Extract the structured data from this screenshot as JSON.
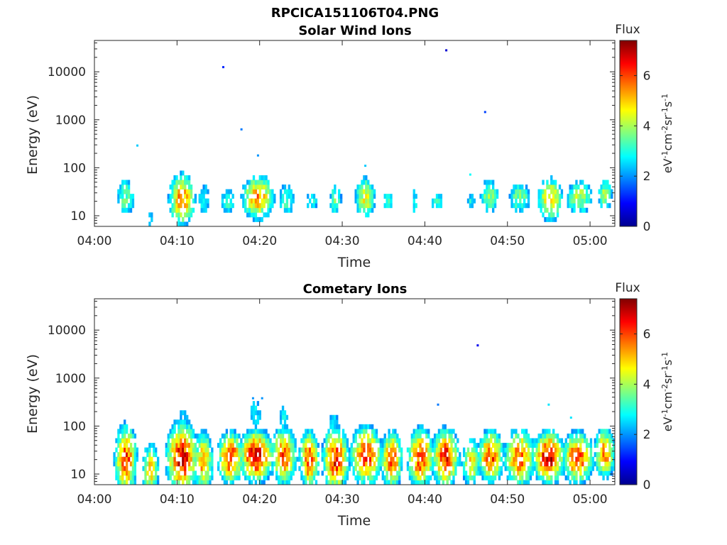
{
  "figure": {
    "filename_title": "RPCICA151106T04.PNG"
  },
  "chart_data": [
    {
      "type": "heatmap",
      "title": "Solar Wind Ions",
      "xlabel": "Time",
      "ylabel": "Energy (eV)",
      "yscale": "log",
      "ylim": [
        6,
        45000
      ],
      "xlim": [
        "04:00",
        "05:03"
      ],
      "x_ticks": [
        "04:00",
        "04:10",
        "04:20",
        "04:30",
        "04:40",
        "04:50",
        "05:00"
      ],
      "y_ticks": [
        "10",
        "100",
        "1000",
        "10000"
      ],
      "grid": false,
      "colorbar": {
        "label_top": "Flux",
        "unit": "eV-1cm-2sr-1s-1",
        "min": 0,
        "max": 7.4,
        "ticks": [
          "0",
          "2",
          "4",
          "6"
        ],
        "colormap": "jet"
      },
      "blobs": [
        {
          "t": 3.8,
          "e": 25,
          "w": 1.0,
          "ws": 0.35,
          "amp": 3.7
        },
        {
          "t": 6.8,
          "e": 8,
          "w": 0.5,
          "ws": 0.35,
          "amp": 2.5
        },
        {
          "t": 10.6,
          "e": 22,
          "w": 1.2,
          "ws": 0.4,
          "amp": 5.8
        },
        {
          "t": 13.3,
          "e": 22,
          "w": 0.8,
          "ws": 0.35,
          "amp": 3.0
        },
        {
          "t": 16.2,
          "e": 20,
          "w": 0.9,
          "ws": 0.25,
          "amp": 3.3
        },
        {
          "t": 19.8,
          "e": 24,
          "w": 1.5,
          "ws": 0.35,
          "amp": 5.6
        },
        {
          "t": 23.2,
          "e": 22,
          "w": 1.0,
          "ws": 0.35,
          "amp": 3.3
        },
        {
          "t": 26.3,
          "e": 20,
          "w": 0.7,
          "ws": 0.2,
          "amp": 3.3
        },
        {
          "t": 29.2,
          "e": 22,
          "w": 0.7,
          "ws": 0.3,
          "amp": 3.6
        },
        {
          "t": 32.8,
          "e": 24,
          "w": 1.0,
          "ws": 0.35,
          "amp": 4.7
        },
        {
          "t": 35.5,
          "e": 20,
          "w": 0.7,
          "ws": 0.2,
          "amp": 3.3
        },
        {
          "t": 38.8,
          "e": 20,
          "w": 0.5,
          "ws": 0.3,
          "amp": 3.0
        },
        {
          "t": 41.5,
          "e": 20,
          "w": 0.8,
          "ws": 0.2,
          "amp": 3.2
        },
        {
          "t": 45.6,
          "e": 20,
          "w": 0.5,
          "ws": 0.2,
          "amp": 3.0
        },
        {
          "t": 47.8,
          "e": 26,
          "w": 1.0,
          "ws": 0.3,
          "amp": 4.0
        },
        {
          "t": 51.5,
          "e": 24,
          "w": 1.2,
          "ws": 0.3,
          "amp": 3.8
        },
        {
          "t": 55.2,
          "e": 22,
          "w": 1.2,
          "ws": 0.35,
          "amp": 5.2
        },
        {
          "t": 58.7,
          "e": 24,
          "w": 1.4,
          "ws": 0.3,
          "amp": 4.2
        },
        {
          "t": 61.8,
          "e": 28,
          "w": 0.8,
          "ws": 0.3,
          "amp": 4.0
        }
      ],
      "dots": [
        {
          "t": 5.2,
          "e": 290,
          "v": 2.4
        },
        {
          "t": 15.6,
          "e": 12500,
          "v": 1.2
        },
        {
          "t": 17.8,
          "e": 630,
          "v": 1.8
        },
        {
          "t": 19.8,
          "e": 180,
          "v": 2.0
        },
        {
          "t": 32.8,
          "e": 110,
          "v": 2.4
        },
        {
          "t": 42.6,
          "e": 28000,
          "v": 0.6
        },
        {
          "t": 45.5,
          "e": 72,
          "v": 2.8
        },
        {
          "t": 47.3,
          "e": 1450,
          "v": 1.4
        }
      ]
    },
    {
      "type": "heatmap",
      "title": "Cometary Ions",
      "xlabel": "Time",
      "ylabel": "Energy (eV)",
      "yscale": "log",
      "ylim": [
        6,
        45000
      ],
      "xlim": [
        "04:00",
        "05:03"
      ],
      "x_ticks": [
        "04:00",
        "04:10",
        "04:20",
        "04:30",
        "04:40",
        "04:50",
        "05:00"
      ],
      "y_ticks": [
        "10",
        "100",
        "1000",
        "10000"
      ],
      "grid": false,
      "colorbar": {
        "label_top": "Flux",
        "unit": "eV-1cm-2sr-1s-1",
        "min": 0,
        "max": 7.4,
        "ticks": [
          "0",
          "2",
          "4",
          "6"
        ],
        "colormap": "jet"
      },
      "blobs": [
        {
          "t": 3.8,
          "e": 20,
          "w": 1.0,
          "ws": 0.55,
          "amp": 6.2
        },
        {
          "t": 3.2,
          "e": 250,
          "w": 0.4,
          "ws": 0.2,
          "amp": 2.0
        },
        {
          "t": 6.8,
          "e": 12,
          "w": 0.8,
          "ws": 0.45,
          "amp": 5.0
        },
        {
          "t": 10.6,
          "e": 22,
          "w": 1.4,
          "ws": 0.55,
          "amp": 6.8
        },
        {
          "t": 10.8,
          "e": 150,
          "w": 0.8,
          "ws": 0.3,
          "amp": 2.6
        },
        {
          "t": 13.2,
          "e": 18,
          "w": 0.9,
          "ws": 0.5,
          "amp": 5.5
        },
        {
          "t": 16.5,
          "e": 22,
          "w": 1.2,
          "ws": 0.4,
          "amp": 6.4
        },
        {
          "t": 19.6,
          "e": 24,
          "w": 1.5,
          "ws": 0.4,
          "amp": 7.0
        },
        {
          "t": 19.5,
          "e": 180,
          "w": 0.8,
          "ws": 0.4,
          "amp": 2.8
        },
        {
          "t": 22.9,
          "e": 24,
          "w": 1.2,
          "ws": 0.45,
          "amp": 6.0
        },
        {
          "t": 22.9,
          "e": 140,
          "w": 0.6,
          "ws": 0.35,
          "amp": 2.8
        },
        {
          "t": 26.0,
          "e": 20,
          "w": 0.9,
          "ws": 0.45,
          "amp": 6.2
        },
        {
          "t": 29.2,
          "e": 20,
          "w": 1.2,
          "ws": 0.5,
          "amp": 6.5
        },
        {
          "t": 29.0,
          "e": 110,
          "w": 0.8,
          "ws": 0.3,
          "amp": 2.8
        },
        {
          "t": 32.9,
          "e": 24,
          "w": 1.4,
          "ws": 0.45,
          "amp": 6.5
        },
        {
          "t": 36.0,
          "e": 20,
          "w": 1.0,
          "ws": 0.45,
          "amp": 6.0
        },
        {
          "t": 39.5,
          "e": 22,
          "w": 1.2,
          "ws": 0.45,
          "amp": 6.4
        },
        {
          "t": 42.5,
          "e": 22,
          "w": 1.2,
          "ws": 0.45,
          "amp": 6.6
        },
        {
          "t": 45.6,
          "e": 18,
          "w": 0.9,
          "ws": 0.4,
          "amp": 5.0
        },
        {
          "t": 48.0,
          "e": 24,
          "w": 1.2,
          "ws": 0.4,
          "amp": 6.2
        },
        {
          "t": 51.5,
          "e": 22,
          "w": 1.4,
          "ws": 0.45,
          "amp": 6.0
        },
        {
          "t": 55.0,
          "e": 22,
          "w": 1.4,
          "ws": 0.4,
          "amp": 7.0
        },
        {
          "t": 58.5,
          "e": 22,
          "w": 1.4,
          "ws": 0.4,
          "amp": 6.4
        },
        {
          "t": 61.8,
          "e": 28,
          "w": 1.0,
          "ws": 0.4,
          "amp": 5.6
        }
      ],
      "dots": [
        {
          "t": 19.2,
          "e": 380,
          "v": 2.0
        },
        {
          "t": 20.3,
          "e": 380,
          "v": 2.0
        },
        {
          "t": 41.6,
          "e": 280,
          "v": 1.8
        },
        {
          "t": 46.4,
          "e": 4800,
          "v": 0.8
        },
        {
          "t": 55.0,
          "e": 280,
          "v": 2.6
        },
        {
          "t": 57.7,
          "e": 150,
          "v": 2.6
        }
      ]
    }
  ]
}
